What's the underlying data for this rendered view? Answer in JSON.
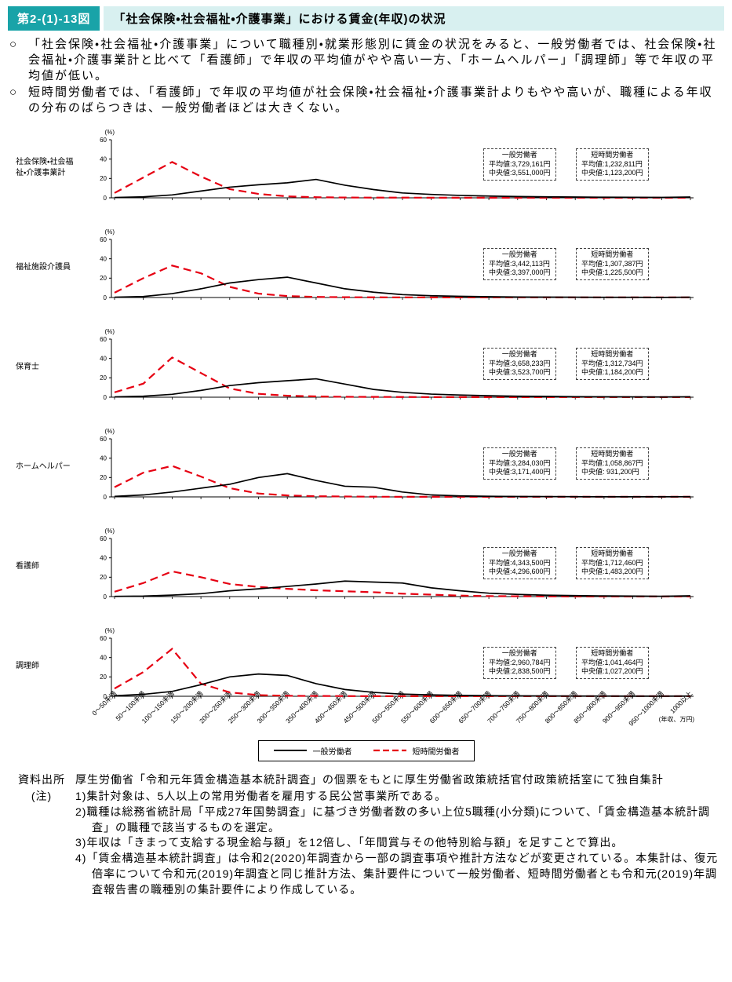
{
  "colors": {
    "accent_teal": "#19a3a8",
    "accent_teal_light": "#d8f0f0",
    "line_general": "#000000",
    "line_short_time": "#e60012"
  },
  "header": {
    "figure_label": "第2-(1)-13図",
    "title": "「社会保険・社会福祉・介護事業」における賃金(年収)の状況"
  },
  "intro": {
    "bullets": [
      {
        "marker": "○",
        "text": "「社会保険・社会福祉・介護事業」について職種別・就業形態別に賃金の状況をみると、一般労働者では、社会保険・社会福祉・介護事業計と比べて「看護師」で年収の平均値がやや高い一方、「ホームヘルパー」「調理師」等で年収の平均値が低い。"
      },
      {
        "marker": "○",
        "text": "短時間労働者では、「看護師」で年収の平均値が社会保険・社会福祉・介護事業計よりもやや高いが、職種による年収の分布のばらつきは、一般労働者ほどは大きくない。"
      }
    ]
  },
  "axis": {
    "y_unit": "(%)",
    "x_unit": "(年収、万円)",
    "y_ticks": [
      0,
      20,
      40,
      60
    ],
    "x_categories": [
      "0〜50未満",
      "50〜100未満",
      "100〜150未満",
      "150〜200未満",
      "200〜250未満",
      "250〜300未満",
      "300〜350未満",
      "350〜400未満",
      "400〜450未満",
      "450〜500未満",
      "500〜550未満",
      "550〜600未満",
      "600〜650未満",
      "650〜700未満",
      "700〜750未満",
      "750〜800未満",
      "800〜850未満",
      "850〜900未満",
      "900〜950未満",
      "950〜1000未満",
      "1000以上"
    ]
  },
  "legend": {
    "general": "一般労働者",
    "short_time": "短時間労働者"
  },
  "chart_data": [
    {
      "type": "line",
      "label": "社会保険・社会福祉・介護事業計",
      "general": {
        "title": "一般労働者",
        "mean": "平均値:3,729,161円",
        "median": "中央値:3,551,000円",
        "values": [
          0.3,
          1,
          3,
          7,
          11,
          13.5,
          15.5,
          19,
          13,
          8.5,
          5,
          3.5,
          2.5,
          1.8,
          1.3,
          1,
          0.8,
          0.6,
          0.5,
          0.4,
          0.8
        ]
      },
      "short_time": {
        "title": "短時間労働者",
        "mean": "平均値:1,232,811円",
        "median": "中央値:1,123,200円",
        "values": [
          5,
          21,
          37,
          22,
          9,
          4,
          1.5,
          0.6,
          0.3,
          0.2,
          0.2,
          0.1,
          0.1,
          0.1,
          0.1,
          0.1,
          0.1,
          0.1,
          0.1,
          0.1,
          0.1
        ]
      }
    },
    {
      "type": "line",
      "label": "福祉施設介護員",
      "general": {
        "title": "一般労働者",
        "mean": "平均値:3,442,113円",
        "median": "中央値:3,397,000円",
        "values": [
          0.3,
          1,
          4,
          9,
          15,
          18.5,
          21,
          15,
          9,
          5.5,
          3,
          1.8,
          1.2,
          0.8,
          0.5,
          0.4,
          0.3,
          0.2,
          0.2,
          0.1,
          0.3
        ]
      },
      "short_time": {
        "title": "短時間労働者",
        "mean": "平均値:1,307,387円",
        "median": "中央値:1,225,500円",
        "values": [
          5,
          20,
          33,
          25,
          11,
          4,
          1.5,
          0.6,
          0.3,
          0.2,
          0.1,
          0.1,
          0.1,
          0.1,
          0.1,
          0.1,
          0.1,
          0.1,
          0.1,
          0.1,
          0.1
        ]
      }
    },
    {
      "type": "line",
      "label": "保育士",
      "general": {
        "title": "一般労働者",
        "mean": "平均値:3,658,233円",
        "median": "中央値:3,523,700円",
        "values": [
          0.3,
          1,
          3,
          7,
          12,
          15,
          17,
          19,
          13.5,
          8,
          5,
          3.2,
          2.2,
          1.5,
          1,
          0.8,
          0.5,
          0.4,
          0.3,
          0.2,
          0.4
        ]
      },
      "short_time": {
        "title": "短時間労働者",
        "mean": "平均値:1,312,734円",
        "median": "中央値:1,184,200円",
        "values": [
          5,
          14,
          41,
          25,
          9,
          3.5,
          1.5,
          0.8,
          0.4,
          0.3,
          0.2,
          0.1,
          0.1,
          0.1,
          0.1,
          0.1,
          0.1,
          0.1,
          0.1,
          0.1,
          0.1
        ]
      }
    },
    {
      "type": "line",
      "label": "ホームヘルパー",
      "general": {
        "title": "一般労働者",
        "mean": "平均値:3,284,030円",
        "median": "中央値:3,171,400円",
        "values": [
          0.5,
          2,
          5,
          9,
          13,
          20,
          24,
          17,
          11,
          10,
          5,
          2,
          1,
          0.6,
          0.4,
          0.3,
          0.2,
          0.1,
          0.1,
          0.1,
          0.2
        ]
      },
      "short_time": {
        "title": "短時間労働者",
        "mean": "平均値:1,058,867円",
        "median": "中央値: 931,200円",
        "values": [
          10,
          25,
          32,
          21,
          9,
          3.5,
          1.5,
          0.7,
          0.4,
          0.2,
          0.1,
          0.1,
          0.1,
          0.1,
          0.1,
          0.1,
          0.1,
          0.1,
          0.1,
          0.1,
          0.1
        ]
      }
    },
    {
      "type": "line",
      "label": "看護師",
      "general": {
        "title": "一般労働者",
        "mean": "平均値:4,343,500円",
        "median": "中央値:4,296,600円",
        "values": [
          0.2,
          0.5,
          1.5,
          3,
          6,
          8,
          10.5,
          13,
          16,
          15,
          14,
          9,
          6,
          3.5,
          2.2,
          1.4,
          1,
          0.7,
          0.5,
          0.3,
          0.8
        ]
      },
      "short_time": {
        "title": "短時間労働者",
        "mean": "平均値:1,712,460円",
        "median": "中央値:1,483,200円",
        "values": [
          5,
          14,
          26,
          20,
          13,
          10,
          8,
          6.5,
          5.5,
          4.5,
          3,
          2,
          1,
          0.5,
          0.3,
          0.2,
          0.1,
          0.1,
          0.1,
          0.1,
          0.1
        ]
      }
    },
    {
      "type": "line",
      "label": "調理師",
      "general": {
        "title": "一般労働者",
        "mean": "平均値:2,960,784円",
        "median": "中央値:2,838,500円",
        "values": [
          0.5,
          2,
          5,
          12,
          20,
          23,
          21.5,
          13,
          7,
          4,
          2.2,
          1.4,
          0.9,
          0.6,
          0.4,
          0.3,
          0.2,
          0.2,
          0.1,
          0.1,
          0.2
        ]
      },
      "short_time": {
        "title": "短時間労働者",
        "mean": "平均値:1,041,464円",
        "median": "中央値:1,027,200円",
        "values": [
          8,
          25,
          49,
          13,
          4,
          1.2,
          0.5,
          0.3,
          0.2,
          0.1,
          0.1,
          0.1,
          0.1,
          0.1,
          0.1,
          0.1,
          0.1,
          0.1,
          0.1,
          0.1,
          0.1
        ]
      }
    }
  ],
  "footer": {
    "source_label": "資料出所",
    "source": "厚生労働省「令和元年賃金構造基本統計調査」の個票をもとに厚生労働省政策統括官付政策統括室にて独自集計",
    "note_label": "(注)",
    "notes": [
      "1)集計対象は、5人以上の常用労働者を雇用する民公営事業所である。",
      "2)職種は総務省統計局「平成27年国勢調査」に基づき労働者数の多い上位5職種(小分類)について、「賃金構造基本統計調査」の職種で該当するものを選定。",
      "3)年収は「きまって支給する現金給与額」を12倍し、「年間賞与その他特別給与額」を足すことで算出。",
      "4)「賃金構造基本統計調査」は令和2(2020)年調査から一部の調査事項や推計方法などが変更されている。本集計は、復元倍率について令和元(2019)年調査と同じ推計方法、集計要件について一般労働者、短時間労働者とも令和元(2019)年調査報告書の職種別の集計要件により作成している。"
    ]
  }
}
